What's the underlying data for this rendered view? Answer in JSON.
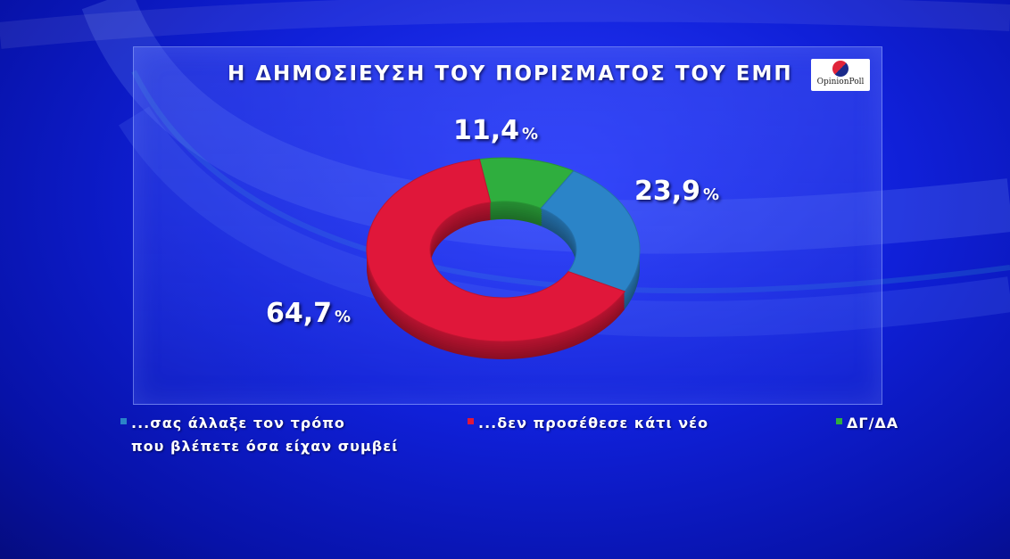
{
  "title": "Η ΔΗΜΟΣΙΕΥΣΗ ΤΟΥ ΠΟΡΙΣΜΑΤΟΣ ΤΟΥ ΕΜΠ",
  "logo_text": "OpinionPoll",
  "pct_symbol": "%",
  "colors": {
    "blue": "#2b84c8",
    "red": "#e0173a",
    "green": "#2fae3e"
  },
  "chart_data": {
    "type": "pie",
    "slices": [
      {
        "label": "...σας άλλαξε τον τρόπο που βλέπετε όσα είχαν συμβεί",
        "value": 23.9,
        "display": "23,9",
        "color": "#2b84c8"
      },
      {
        "label": "...δεν προσέθεσε κάτι νέο",
        "value": 64.7,
        "display": "64,7",
        "color": "#e0173a"
      },
      {
        "label": "ΔΓ/ΔΑ",
        "value": 11.4,
        "display": "11,4",
        "color": "#2fae3e"
      }
    ]
  },
  "legend": {
    "blue_line1": "...σας άλλαξε τον τρόπο",
    "blue_line2": "που βλέπετε όσα είχαν συμβεί",
    "red": "...δεν προσέθεσε κάτι νέο",
    "green": "ΔΓ/ΔΑ"
  }
}
